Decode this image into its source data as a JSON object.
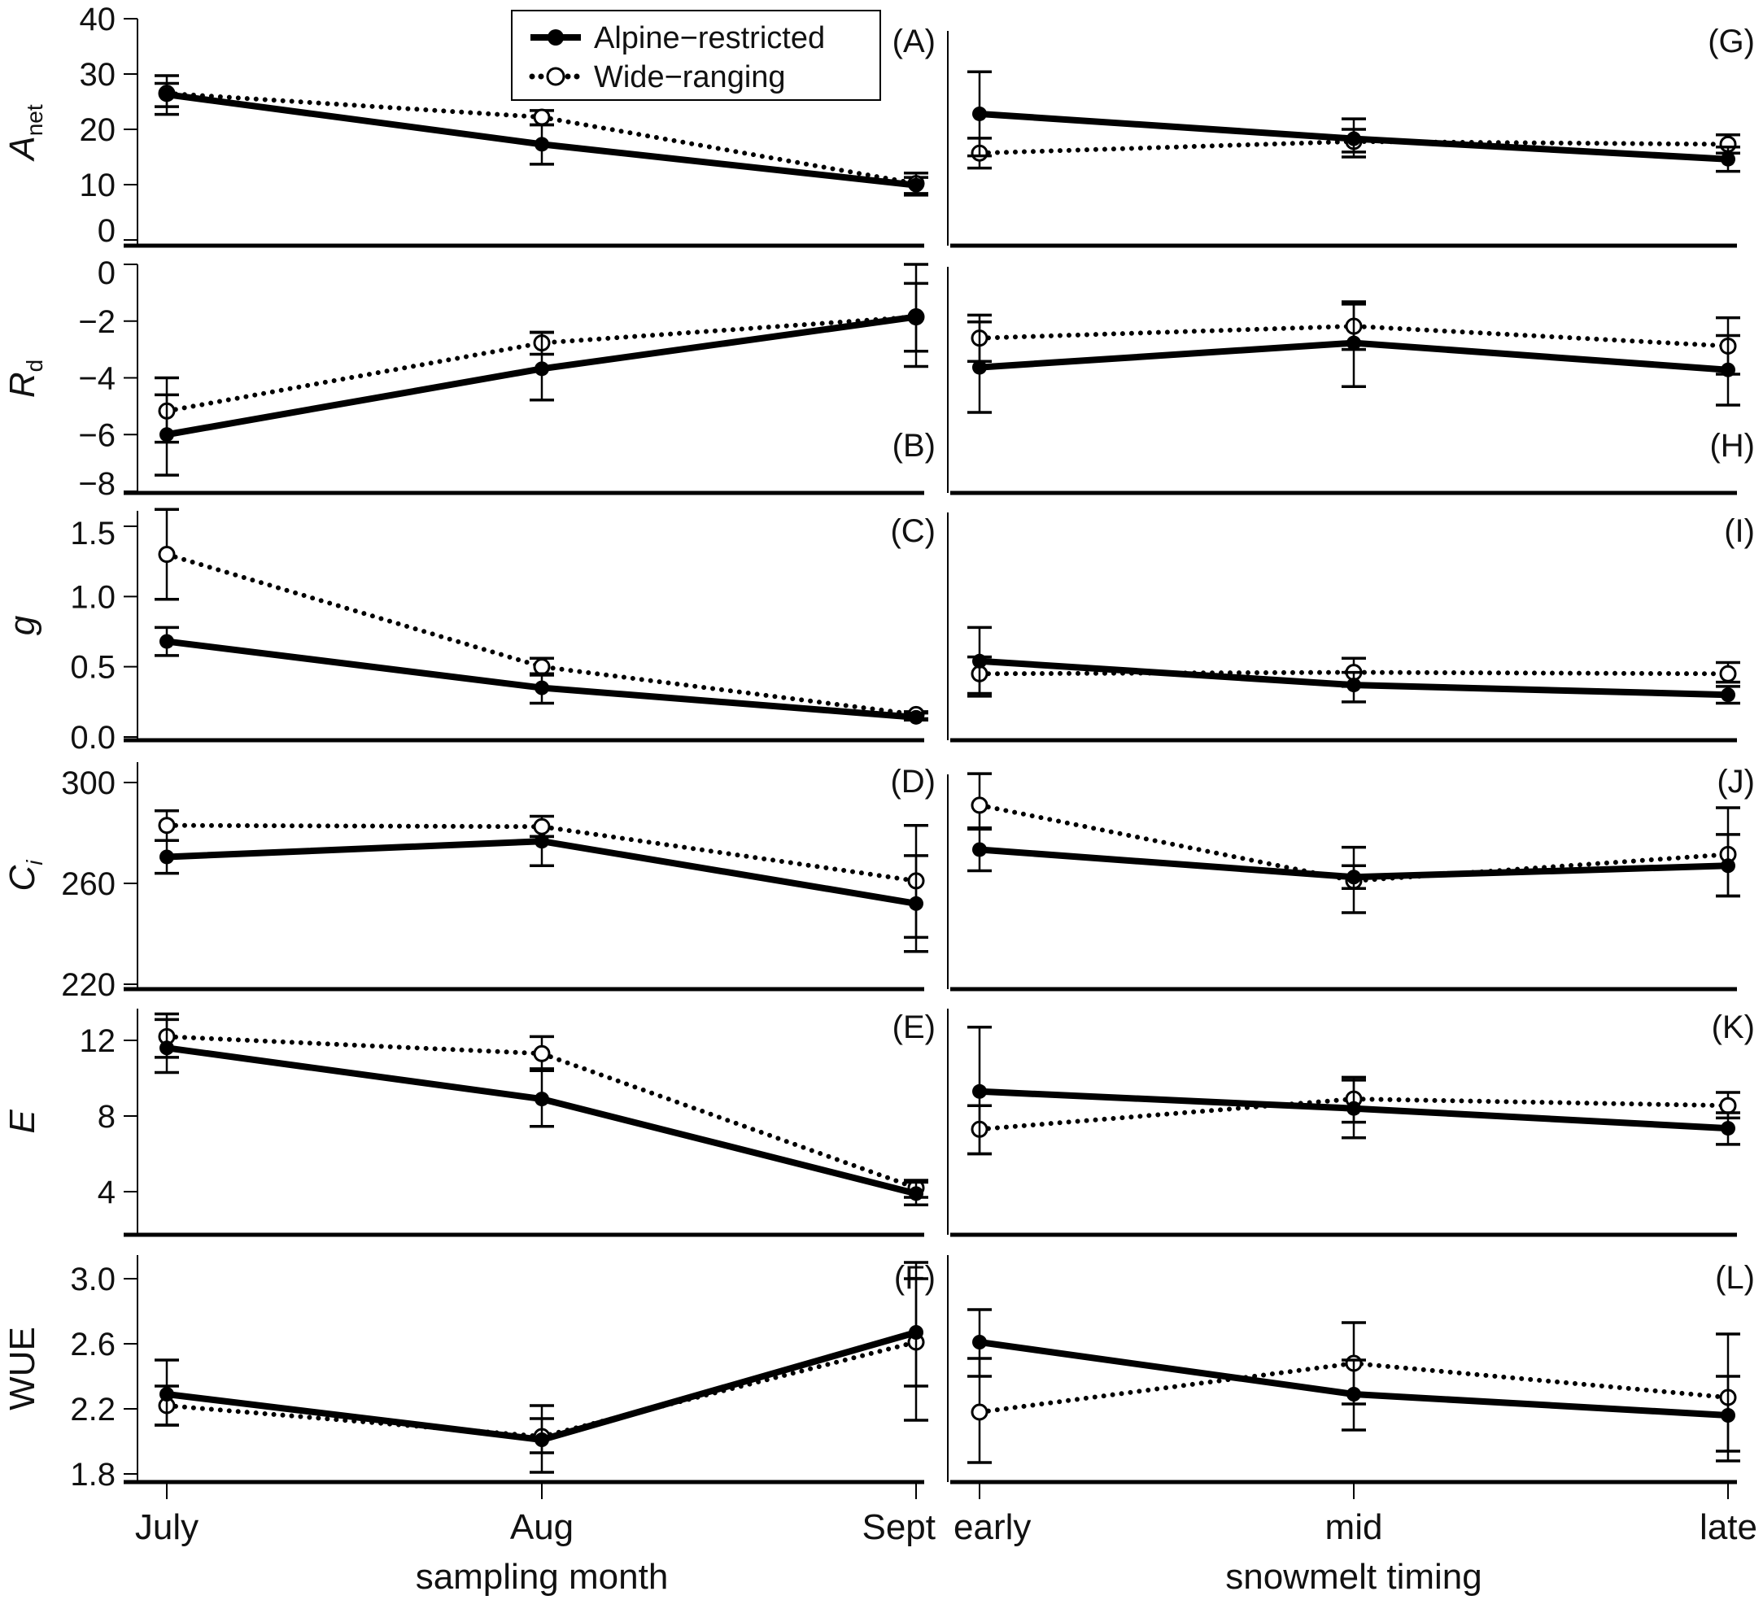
{
  "legend": {
    "alpine": "Alpine−restricted",
    "wide": "Wide−ranging"
  },
  "colors": {
    "line": "#000000",
    "background": "#ffffff"
  },
  "chart_data": {
    "type": "line",
    "title": "",
    "legend_position": "top-left panel, upper-middle",
    "x_left": {
      "label": "sampling month",
      "categories": [
        "July",
        "Aug",
        "Sept"
      ]
    },
    "x_right": {
      "label": "snowmelt timing",
      "categories": [
        "early",
        "mid",
        "late"
      ]
    },
    "series_names": [
      "Alpine-restricted",
      "Wide-ranging"
    ],
    "rows": [
      {
        "ylabel": {
          "main": "A",
          "sub": "net"
        },
        "yticks": [
          "0",
          "10",
          "20",
          "30",
          "40"
        ],
        "ylim": [
          0,
          40
        ]
      },
      {
        "ylabel": {
          "main": "R",
          "sub": "d"
        },
        "yticks": [
          "0",
          "−2",
          "−4",
          "−6",
          "−8"
        ],
        "ylim": [
          -8,
          0
        ]
      },
      {
        "ylabel": {
          "main": "g",
          "sub": ""
        },
        "yticks": [
          "0.0",
          "0.5",
          "1.0",
          "1.5"
        ],
        "ylim": [
          0,
          1.6
        ]
      },
      {
        "ylabel": {
          "main": "C",
          "sub": "i"
        },
        "yticks": [
          "220",
          "260",
          "300"
        ],
        "ylim": [
          220,
          305
        ]
      },
      {
        "ylabel": {
          "main": "E",
          "sub": ""
        },
        "yticks": [
          "4",
          "8",
          "12"
        ],
        "ylim": [
          2.3,
          13.8
        ]
      },
      {
        "ylabel": {
          "main": "WUE",
          "sub": ""
        },
        "yticks": [
          "1.8",
          "2.2",
          "2.6",
          "3.0"
        ],
        "ylim": [
          1.78,
          3.12
        ]
      }
    ],
    "panels": [
      {
        "id": "(A)",
        "row": 0,
        "side": "left",
        "alpine": {
          "values": [
            26.3,
            17.3,
            9.9
          ],
          "err_low": [
            22.7,
            13.7,
            8.1
          ],
          "err_high": [
            29.7,
            20.8,
            12.1
          ]
        },
        "wide": {
          "values": [
            26.5,
            22.2,
            10.2
          ],
          "err_low": [
            24.1,
            20.8,
            8.4
          ],
          "err_high": [
            28.3,
            23.4,
            11.3
          ]
        }
      },
      {
        "id": "(G)",
        "row": 0,
        "side": "right",
        "alpine": {
          "values": [
            22.8,
            18.3,
            14.6
          ],
          "err_low": [
            15.2,
            15.0,
            12.4
          ],
          "err_high": [
            30.4,
            21.9,
            16.8
          ]
        },
        "wide": {
          "values": [
            15.7,
            17.8,
            17.3
          ],
          "err_low": [
            13.0,
            15.9,
            15.7
          ],
          "err_high": [
            18.4,
            20.0,
            19.0
          ]
        }
      },
      {
        "id": "(B)",
        "row": 1,
        "side": "left",
        "alpine": {
          "values": [
            -6.0,
            -3.68,
            -1.85
          ],
          "err_low": [
            -7.43,
            -4.78,
            -3.6
          ],
          "err_high": [
            -4.6,
            -2.4,
            0.0
          ]
        },
        "wide": {
          "values": [
            -5.17,
            -2.77,
            -1.85
          ],
          "err_low": [
            -6.27,
            -3.17,
            -3.06
          ],
          "err_high": [
            -4.0,
            -2.39,
            -0.67
          ]
        }
      },
      {
        "id": "(H)",
        "row": 1,
        "side": "right",
        "alpine": {
          "values": [
            -3.63,
            -2.77,
            -3.72
          ],
          "err_low": [
            -5.22,
            -4.31,
            -4.96
          ],
          "err_high": [
            -2.03,
            -1.32,
            -2.51
          ]
        },
        "wide": {
          "values": [
            -2.6,
            -2.18,
            -2.88
          ],
          "err_low": [
            -3.42,
            -3.0,
            -3.87
          ],
          "err_high": [
            -1.79,
            -1.4,
            -1.88
          ]
        }
      },
      {
        "id": "(C)",
        "row": 2,
        "side": "left",
        "alpine": {
          "values": [
            0.68,
            0.35,
            0.14
          ],
          "err_low": [
            0.58,
            0.24,
            0.12
          ],
          "err_high": [
            0.78,
            0.45,
            0.17
          ]
        },
        "wide": {
          "values": [
            1.3,
            0.5,
            0.16
          ],
          "err_low": [
            0.98,
            0.44,
            0.13
          ],
          "err_high": [
            1.62,
            0.56,
            0.18
          ]
        }
      },
      {
        "id": "(I)",
        "row": 2,
        "side": "right",
        "alpine": {
          "values": [
            0.54,
            0.37,
            0.3
          ],
          "err_low": [
            0.31,
            0.25,
            0.24
          ],
          "err_high": [
            0.78,
            0.46,
            0.36
          ]
        },
        "wide": {
          "values": [
            0.45,
            0.46,
            0.45
          ],
          "err_low": [
            0.29,
            0.36,
            0.39
          ],
          "err_high": [
            0.57,
            0.56,
            0.53
          ]
        }
      },
      {
        "id": "(D)",
        "row": 3,
        "side": "left",
        "alpine": {
          "values": [
            270.5,
            276.7,
            252.0
          ],
          "err_low": [
            264.0,
            267.0,
            233.0
          ],
          "err_high": [
            277.0,
            278.6,
            271.0
          ]
        },
        "wide": {
          "values": [
            283.0,
            282.5,
            261.0
          ],
          "err_low": [
            277.0,
            278.6,
            238.6
          ],
          "err_high": [
            288.8,
            286.6,
            283.0
          ]
        }
      },
      {
        "id": "(J)",
        "row": 3,
        "side": "right",
        "alpine": {
          "values": [
            273.4,
            262.5,
            267.0
          ],
          "err_low": [
            265.0,
            248.4,
            255.0
          ],
          "err_high": [
            281.5,
            274.3,
            279.4
          ]
        },
        "wide": {
          "values": [
            291.0,
            261.0,
            271.5
          ],
          "err_low": [
            282.0,
            258.0,
            255.0
          ],
          "err_high": [
            303.5,
            267.0,
            290.0
          ]
        }
      },
      {
        "id": "(E)",
        "row": 4,
        "side": "left",
        "alpine": {
          "values": [
            11.6,
            8.9,
            3.9
          ],
          "err_low": [
            10.3,
            7.45,
            3.3
          ],
          "err_high": [
            13.1,
            10.4,
            4.5
          ]
        },
        "wide": {
          "values": [
            12.2,
            11.3,
            4.2
          ],
          "err_low": [
            11.1,
            10.5,
            3.7
          ],
          "err_high": [
            13.4,
            12.2,
            4.6
          ]
        }
      },
      {
        "id": "(K)",
        "row": 4,
        "side": "right",
        "alpine": {
          "values": [
            9.3,
            8.4,
            7.35
          ],
          "err_low": [
            6.0,
            7.67,
            6.5
          ],
          "err_high": [
            12.7,
            10.05,
            8.17
          ]
        },
        "wide": {
          "values": [
            7.3,
            8.9,
            8.55
          ],
          "err_low": [
            6.0,
            6.85,
            7.9
          ],
          "err_high": [
            8.55,
            9.9,
            9.25
          ]
        }
      },
      {
        "id": "(F)",
        "row": 5,
        "side": "left",
        "alpine": {
          "values": [
            2.29,
            2.01,
            2.67
          ],
          "err_low": [
            2.1,
            1.81,
            2.13
          ],
          "err_high": [
            2.5,
            2.14,
            3.1
          ]
        },
        "wide": {
          "values": [
            2.22,
            2.03,
            2.61
          ],
          "err_low": [
            2.1,
            1.93,
            2.34
          ],
          "err_high": [
            2.34,
            2.22,
            3.0
          ]
        }
      },
      {
        "id": "(L)",
        "row": 5,
        "side": "right",
        "alpine": {
          "values": [
            2.61,
            2.29,
            2.16
          ],
          "err_low": [
            2.4,
            2.07,
            1.88
          ],
          "err_high": [
            2.81,
            2.5,
            2.4
          ]
        },
        "wide": {
          "values": [
            2.18,
            2.48,
            2.27
          ],
          "err_low": [
            1.87,
            2.23,
            1.94
          ],
          "err_high": [
            2.51,
            2.73,
            2.66
          ]
        }
      }
    ]
  }
}
